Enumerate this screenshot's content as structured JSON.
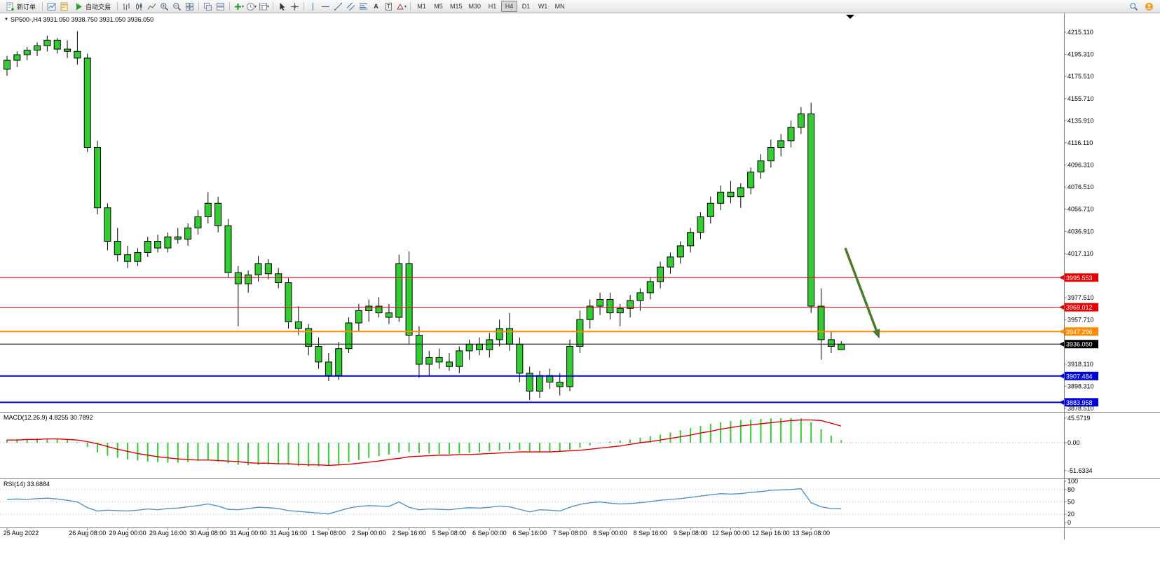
{
  "app": {
    "toolbar": {
      "new_order_label": "新订单",
      "autotrading_label": "自动交易",
      "timeframes": [
        "M1",
        "M5",
        "M15",
        "M30",
        "H1",
        "H4",
        "D1",
        "W1",
        "MN"
      ],
      "active_timeframe": "H4",
      "icon_names": [
        "new-order-icon",
        "charts-window-icon",
        "mql-editor-icon",
        "autotrading-play-icon",
        "bars-chart-icon",
        "candles-chart-icon",
        "line-chart-icon",
        "zoom-in-icon",
        "zoom-out-icon",
        "tile-windows-icon",
        "cascade-windows-icon",
        "tile-vertical-icon",
        "add-indicator-icon",
        "period-clock-icon",
        "templates-icon",
        "cursor-icon",
        "crosshair-icon",
        "vertical-line-icon",
        "horizontal-line-icon",
        "trendline-icon",
        "channel-icon",
        "fibonacci-icon",
        "text-icon",
        "label-icon",
        "shapes-icon",
        "search-icon",
        "account-icon"
      ]
    }
  },
  "chart_data": {
    "type": "candlestick",
    "symbol": "SP500-",
    "timeframe": "H4",
    "title": "SP500-,H4 3931.050 3938.750 3931.050 3936.050",
    "ohlc": {
      "open": "3931.050",
      "high": "3938.750",
      "low": "3931.050",
      "close": "3936.050"
    },
    "colors": {
      "candle_fill": "#33cc33",
      "candle_border": "#000000",
      "macd_histogram": "#33cc33",
      "macd_signal": "#e00000",
      "rsi_line": "#4f94cd",
      "level_red": "#e80000",
      "level_orange": "#ff8c00",
      "level_blue": "#0000d8",
      "current_price": "#000000",
      "arrow": "#4e7b2a"
    },
    "price_axis": {
      "ticks": [
        "4215.110",
        "4195.310",
        "4175.510",
        "4155.710",
        "4135.910",
        "4116.110",
        "4096.310",
        "4076.510",
        "4056.710",
        "4036.910",
        "4017.110",
        "3997.310",
        "3977.510",
        "3957.710",
        "3937.910",
        "3918.110",
        "3898.310",
        "3878.510"
      ]
    },
    "levels": [
      {
        "label": "3995.553",
        "price": 3995.553,
        "color": "#e80000",
        "width": 1
      },
      {
        "label": "3969.012",
        "price": 3969.012,
        "color": "#e80000",
        "width": 1
      },
      {
        "label": "3947.296",
        "price": 3947.296,
        "color": "#ff8c00",
        "width": 2
      },
      {
        "label": "3936.050",
        "price": 3936.05,
        "color": "#000000",
        "width": 1
      },
      {
        "label": "3907.484",
        "price": 3907.484,
        "color": "#0000d8",
        "width": 2
      },
      {
        "label": "3883.958",
        "price": 3883.958,
        "color": "#0000d8",
        "width": 2
      }
    ],
    "time_labels": [
      "25 Aug 2022",
      "26 Aug 08:00",
      "29 Aug 00:00",
      "29 Aug 16:00",
      "30 Aug 08:00",
      "31 Aug 00:00",
      "31 Aug 16:00",
      "1 Sep 08:00",
      "2 Sep 00:00",
      "2 Sep 16:00",
      "5 Sep 08:00",
      "6 Sep 00:00",
      "6 Sep 16:00",
      "7 Sep 08:00",
      "8 Sep 00:00",
      "8 Sep 16:00",
      "9 Sep 08:00",
      "12 Sep 00:00",
      "12 Sep 16:00",
      "13 Sep 08:00"
    ],
    "time_label_bars": [
      0,
      8,
      12,
      16,
      20,
      24,
      28,
      32,
      36,
      40,
      44,
      48,
      52,
      56,
      60,
      64,
      68,
      72,
      76,
      80
    ],
    "candles": [
      [
        4182,
        4194,
        4176,
        4190
      ],
      [
        4190,
        4198,
        4184,
        4195
      ],
      [
        4195,
        4202,
        4190,
        4199
      ],
      [
        4199,
        4206,
        4194,
        4203
      ],
      [
        4203,
        4212,
        4198,
        4208
      ],
      [
        4208,
        4210,
        4196,
        4200
      ],
      [
        4200,
        4208,
        4192,
        4198
      ],
      [
        4198,
        4216,
        4186,
        4192
      ],
      [
        4192,
        4196,
        4108,
        4112
      ],
      [
        4112,
        4118,
        4052,
        4058
      ],
      [
        4058,
        4062,
        4020,
        4028
      ],
      [
        4028,
        4040,
        4010,
        4016
      ],
      [
        4016,
        4024,
        4004,
        4010
      ],
      [
        4010,
        4022,
        4006,
        4018
      ],
      [
        4018,
        4032,
        4014,
        4028
      ],
      [
        4028,
        4034,
        4018,
        4022
      ],
      [
        4022,
        4036,
        4018,
        4032
      ],
      [
        4032,
        4040,
        4026,
        4030
      ],
      [
        4030,
        4044,
        4024,
        4040
      ],
      [
        4040,
        4056,
        4034,
        4050
      ],
      [
        4050,
        4072,
        4044,
        4062
      ],
      [
        4062,
        4068,
        4036,
        4042
      ],
      [
        4042,
        4048,
        3996,
        4000
      ],
      [
        4000,
        4006,
        3952,
        3990
      ],
      [
        3990,
        4002,
        3982,
        3998
      ],
      [
        3998,
        4015,
        3992,
        4008
      ],
      [
        4008,
        4012,
        3994,
        3999
      ],
      [
        3999,
        4004,
        3986,
        3991
      ],
      [
        3991,
        3995,
        3950,
        3956
      ],
      [
        3956,
        3970,
        3944,
        3950
      ],
      [
        3950,
        3954,
        3926,
        3934
      ],
      [
        3934,
        3942,
        3914,
        3920
      ],
      [
        3920,
        3928,
        3903,
        3908
      ],
      [
        3908,
        3938,
        3904,
        3932
      ],
      [
        3932,
        3960,
        3928,
        3955
      ],
      [
        3955,
        3972,
        3948,
        3966
      ],
      [
        3966,
        3976,
        3956,
        3970
      ],
      [
        3970,
        3978,
        3960,
        3964
      ],
      [
        3964,
        3972,
        3954,
        3960
      ],
      [
        3960,
        4016,
        3956,
        4008
      ],
      [
        4008,
        4019,
        3936,
        3944
      ],
      [
        3944,
        3952,
        3906,
        3918
      ],
      [
        3918,
        3930,
        3908,
        3924
      ],
      [
        3924,
        3932,
        3914,
        3920
      ],
      [
        3920,
        3928,
        3912,
        3916
      ],
      [
        3916,
        3934,
        3910,
        3930
      ],
      [
        3930,
        3940,
        3922,
        3936
      ],
      [
        3936,
        3942,
        3926,
        3931
      ],
      [
        3931,
        3946,
        3924,
        3940
      ],
      [
        3940,
        3958,
        3934,
        3950
      ],
      [
        3950,
        3964,
        3930,
        3936
      ],
      [
        3936,
        3942,
        3902,
        3910
      ],
      [
        3910,
        3916,
        3886,
        3894
      ],
      [
        3894,
        3912,
        3888,
        3908
      ],
      [
        3908,
        3914,
        3896,
        3902
      ],
      [
        3902,
        3910,
        3890,
        3898
      ],
      [
        3898,
        3940,
        3894,
        3934
      ],
      [
        3934,
        3966,
        3928,
        3958
      ],
      [
        3958,
        3976,
        3950,
        3970
      ],
      [
        3970,
        3982,
        3962,
        3976
      ],
      [
        3976,
        3982,
        3958,
        3964
      ],
      [
        3964,
        3972,
        3952,
        3968
      ],
      [
        3968,
        3980,
        3960,
        3975
      ],
      [
        3975,
        3986,
        3966,
        3982
      ],
      [
        3982,
        3996,
        3976,
        3992
      ],
      [
        3992,
        4010,
        3986,
        4005
      ],
      [
        4005,
        4018,
        3999,
        4014
      ],
      [
        4014,
        4028,
        4008,
        4024
      ],
      [
        4024,
        4040,
        4018,
        4036
      ],
      [
        4036,
        4054,
        4030,
        4050
      ],
      [
        4050,
        4068,
        4044,
        4062
      ],
      [
        4062,
        4078,
        4056,
        4072
      ],
      [
        4072,
        4082,
        4062,
        4068
      ],
      [
        4068,
        4080,
        4058,
        4076
      ],
      [
        4076,
        4094,
        4070,
        4090
      ],
      [
        4090,
        4106,
        4084,
        4100
      ],
      [
        4100,
        4119,
        4094,
        4112
      ],
      [
        4112,
        4124,
        4104,
        4118
      ],
      [
        4118,
        4136,
        4112,
        4130
      ],
      [
        4130,
        4148,
        4124,
        4142
      ],
      [
        4142,
        4152,
        3964,
        3970
      ],
      [
        3970,
        3986,
        3922,
        3940
      ],
      [
        3940,
        3948,
        3928,
        3934
      ],
      [
        3931.05,
        3938.75,
        3931.05,
        3936.05
      ]
    ],
    "indicators": [
      {
        "name": "MACD",
        "display": "MACD(12,26,9) 4.8255 30.7892",
        "params": [
          12,
          26,
          9
        ],
        "main_value": 4.8255,
        "signal_value": 30.7892,
        "axis_labels": [
          "45.5719",
          "0.00",
          "-51.6334"
        ],
        "histogram": [
          6,
          7,
          7,
          8,
          8,
          7,
          5,
          1,
          -8,
          -18,
          -24,
          -28,
          -31,
          -33,
          -35,
          -36,
          -37,
          -37,
          -36,
          -34,
          -33,
          -35,
          -38,
          -41,
          -42,
          -41,
          -40,
          -40,
          -41,
          -43,
          -44,
          -44,
          -43,
          -40,
          -36,
          -32,
          -28,
          -25,
          -22,
          -18,
          -17,
          -19,
          -20,
          -21,
          -21,
          -20,
          -19,
          -18,
          -16,
          -14,
          -13,
          -14,
          -16,
          -17,
          -17,
          -16,
          -13,
          -9,
          -5,
          -1,
          2,
          4,
          6,
          9,
          12,
          15,
          19,
          23,
          27,
          31,
          35,
          38,
          40,
          42,
          43,
          44,
          45,
          45.5,
          45.5719,
          45,
          38,
          25,
          13,
          4.8255
        ],
        "signal": [
          5,
          5,
          6,
          6,
          7,
          7,
          6,
          5,
          2,
          -2,
          -7,
          -12,
          -16,
          -20,
          -23,
          -26,
          -28,
          -30,
          -31,
          -32,
          -32,
          -33,
          -34,
          -35,
          -37,
          -38,
          -38,
          -39,
          -39,
          -40,
          -41,
          -41,
          -42,
          -41,
          -40,
          -38,
          -36,
          -34,
          -31,
          -29,
          -26,
          -25,
          -24,
          -23,
          -23,
          -22,
          -22,
          -21,
          -20,
          -19,
          -18,
          -17,
          -17,
          -17,
          -17,
          -16,
          -15,
          -14,
          -12,
          -10,
          -8,
          -6,
          -3,
          0,
          2,
          5,
          8,
          11,
          14,
          18,
          21,
          25,
          28,
          31,
          33,
          35,
          37,
          39,
          41,
          42,
          42,
          41,
          36,
          30.7892
        ]
      },
      {
        "name": "RSI",
        "display": "RSI(14) 33.6884",
        "period": 14,
        "value": 33.6884,
        "axis_labels": [
          "100",
          "80",
          "50",
          "20",
          "0"
        ],
        "level_lines": [
          80,
          50,
          20
        ],
        "values": [
          56,
          57,
          56,
          58,
          59,
          57,
          54,
          50,
          36,
          28,
          30,
          29,
          28,
          30,
          33,
          31,
          34,
          35,
          38,
          41,
          45,
          40,
          32,
          31,
          34,
          37,
          36,
          34,
          29,
          27,
          25,
          23,
          21,
          28,
          35,
          39,
          41,
          40,
          39,
          50,
          37,
          31,
          33,
          32,
          31,
          34,
          36,
          35,
          37,
          40,
          38,
          32,
          26,
          31,
          30,
          28,
          37,
          44,
          48,
          50,
          47,
          45,
          46,
          48,
          51,
          54,
          56,
          58,
          61,
          64,
          67,
          70,
          69,
          70,
          73,
          75,
          78,
          79,
          80,
          82,
          48,
          38,
          34,
          33.6884
        ]
      }
    ],
    "annotations": [
      {
        "type": "arrow",
        "color": "#4e7b2a",
        "stroke_width": 3.5,
        "from": {
          "bar": 83.4,
          "price": 4022
        },
        "to": {
          "bar": 86.8,
          "price": 3941
        }
      }
    ]
  }
}
